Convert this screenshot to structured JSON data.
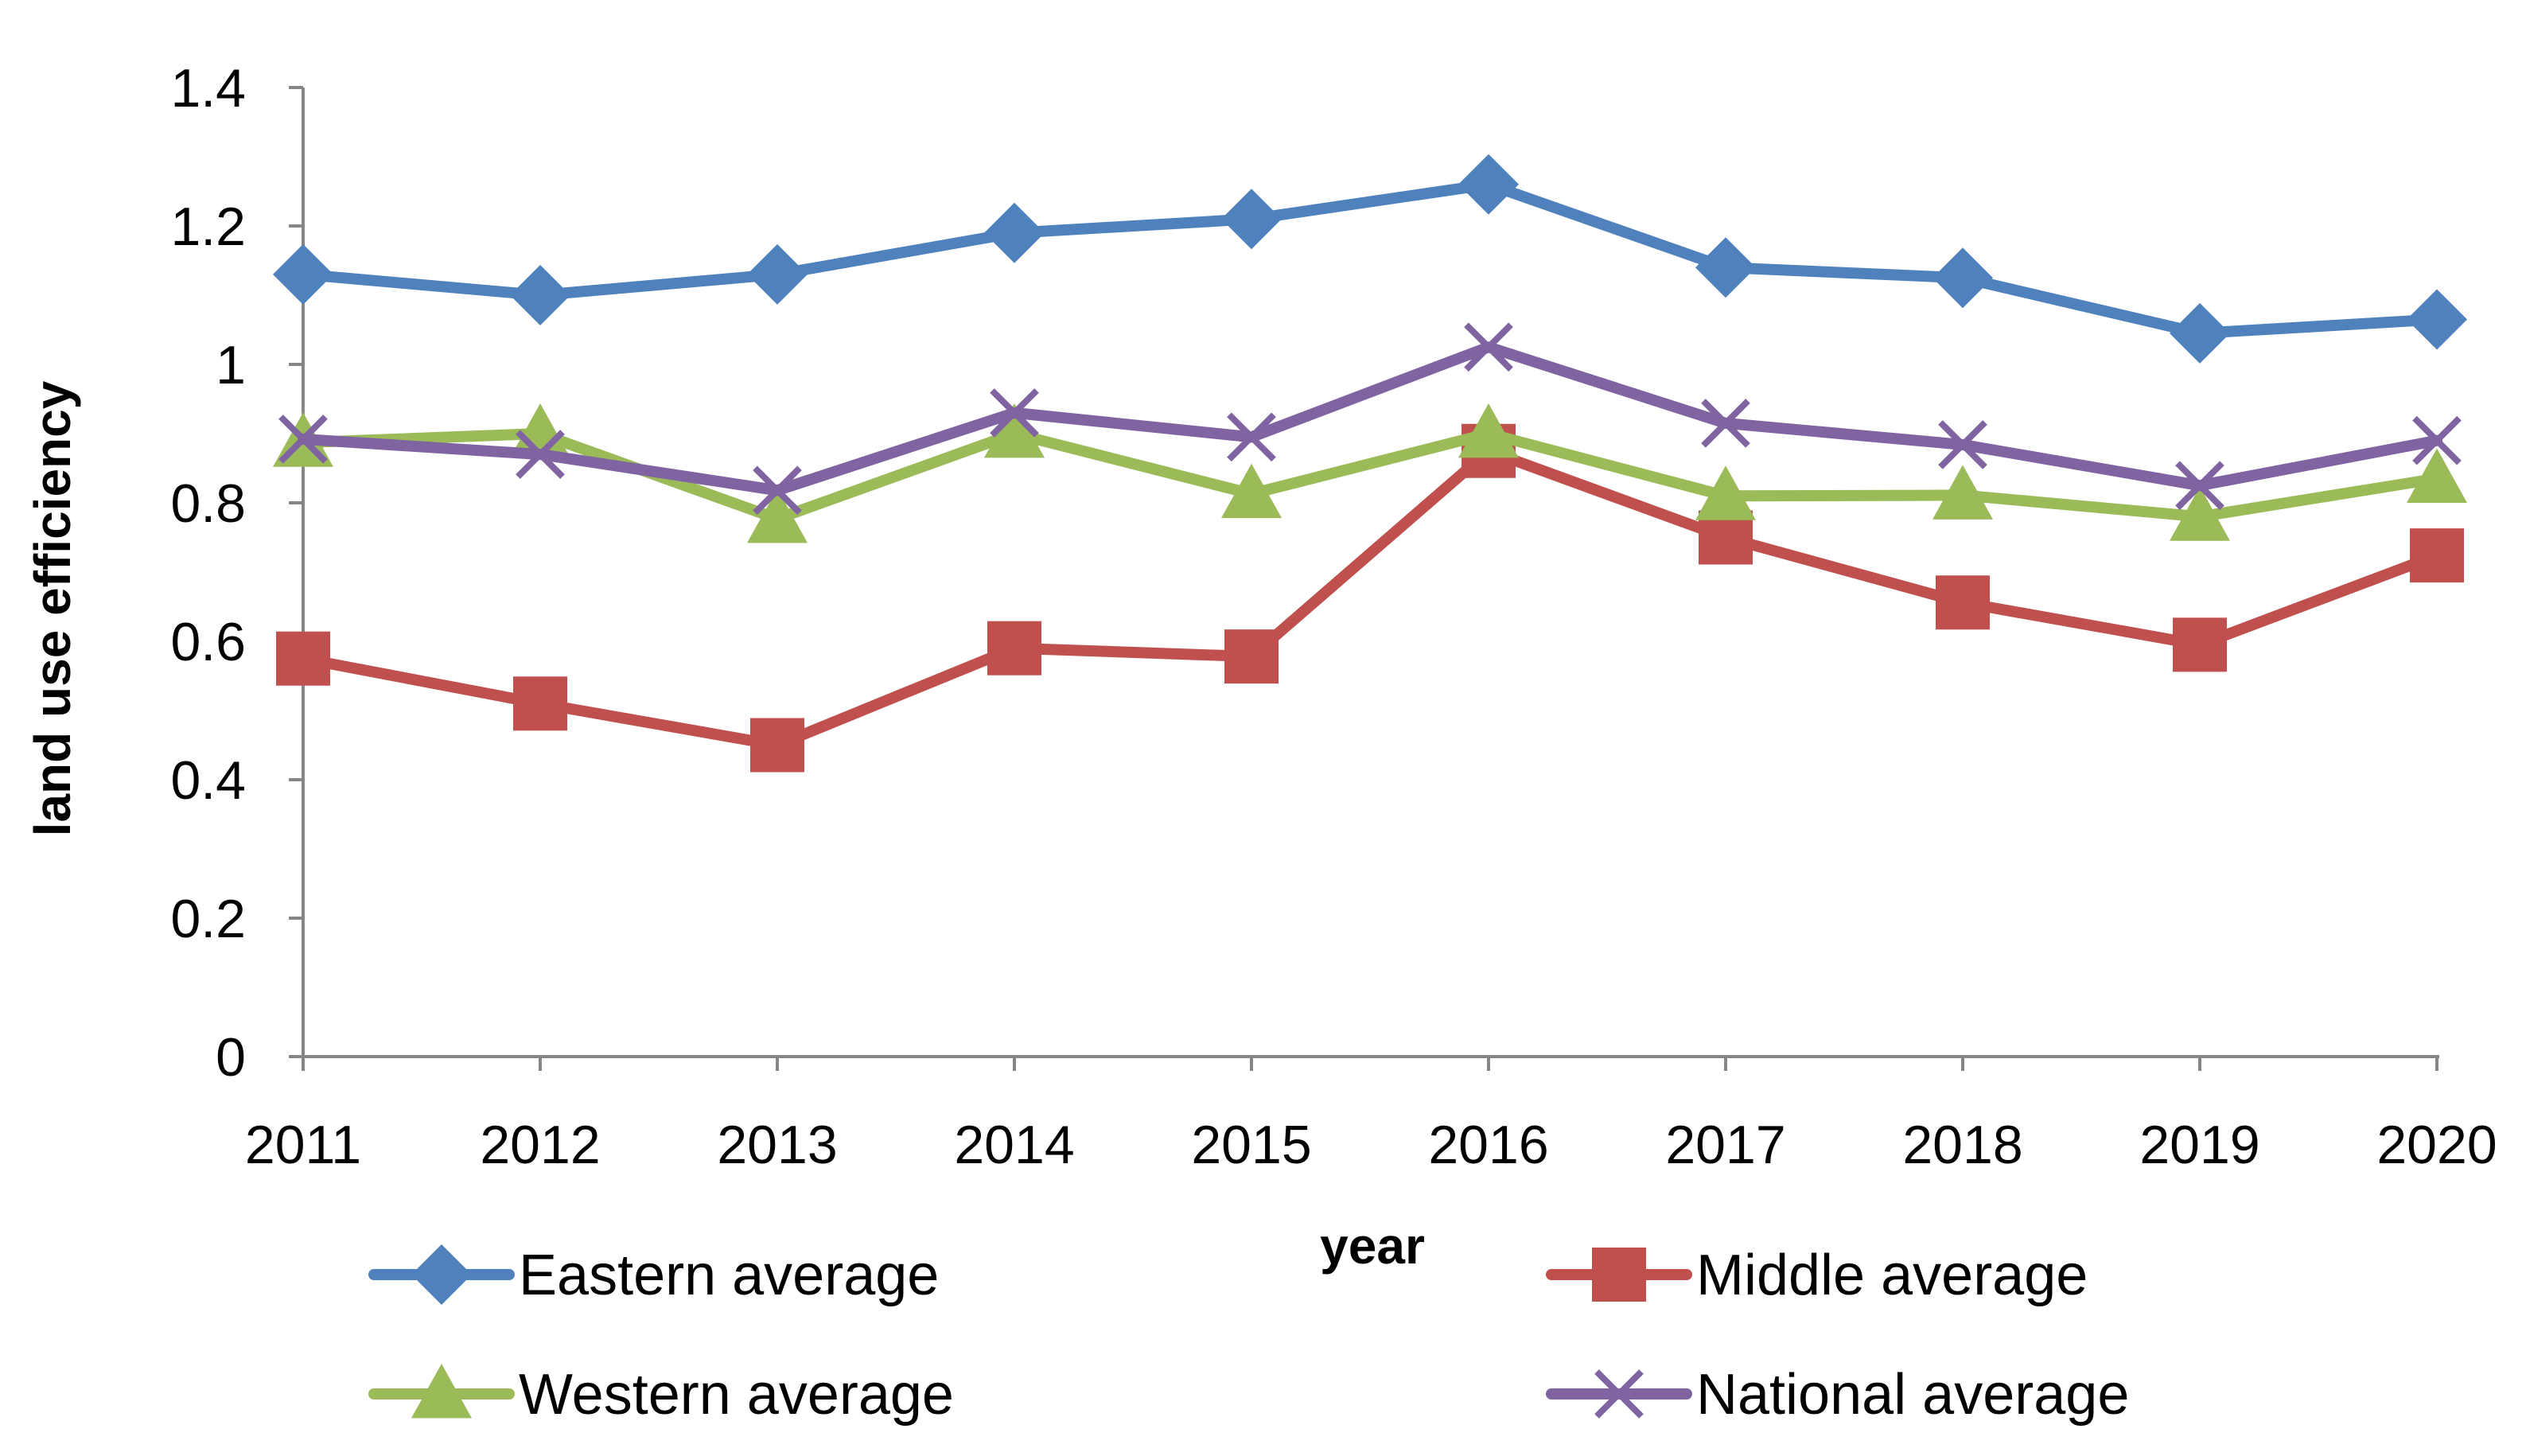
{
  "chart_data": {
    "type": "line",
    "title": "",
    "xlabel": "year",
    "ylabel": "land use efficiency",
    "ylim": [
      0,
      1.4
    ],
    "yticks": [
      "0",
      "0.2",
      "0.4",
      "0.6",
      "0.8",
      "1",
      "1.2",
      "1.4"
    ],
    "categories": [
      "2011",
      "2012",
      "2013",
      "2014",
      "2015",
      "2016",
      "2017",
      "2018",
      "2019",
      "2020"
    ],
    "grid": false,
    "legend_position": "bottom",
    "series": [
      {
        "name": "Eastern average",
        "color": "#4F81BD",
        "marker": "diamond",
        "values": [
          1.13,
          1.1,
          1.13,
          1.19,
          1.21,
          1.26,
          1.14,
          1.125,
          1.045,
          1.065
        ]
      },
      {
        "name": "Middle average",
        "color": "#C0504D",
        "marker": "square",
        "values": [
          0.575,
          0.51,
          0.45,
          0.59,
          0.578,
          0.875,
          0.75,
          0.656,
          0.595,
          0.724
        ]
      },
      {
        "name": "Western average",
        "color": "#9BBB59",
        "marker": "triangle",
        "values": [
          0.887,
          0.9,
          0.777,
          0.9,
          0.813,
          0.9,
          0.81,
          0.811,
          0.78,
          0.835
        ]
      },
      {
        "name": "National average",
        "color": "#8064A2",
        "marker": "x",
        "values": [
          0.892,
          0.87,
          0.818,
          0.93,
          0.895,
          1.025,
          0.915,
          0.884,
          0.825,
          0.89
        ]
      }
    ]
  }
}
